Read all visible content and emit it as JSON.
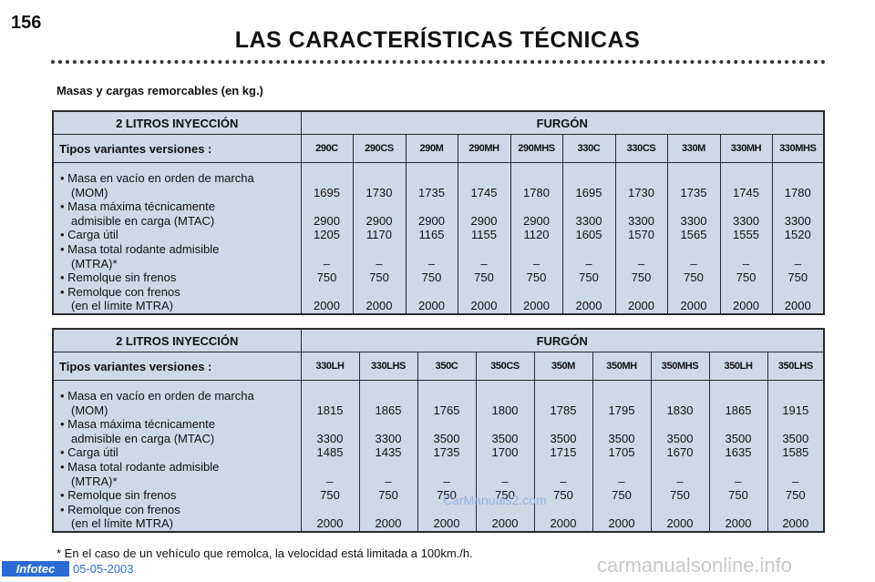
{
  "page_number": "156",
  "title": "LAS CARACTERÍSTICAS TÉCNICAS",
  "subtitle": "Masas y cargas remorcables (en kg.)",
  "row_labels": [
    "• Masa en vacío en orden de marcha",
    "(MOM)",
    "• Masa máxima técnicamente",
    "admisible en carga (MTAC)",
    "• Carga útil",
    "• Masa total rodante admisible",
    "(MTRA)*",
    "• Remolque sin frenos",
    "• Remolque con frenos",
    "(en el límite MTRA)"
  ],
  "table1": {
    "header_left": "2 LITROS INYECCIÓN",
    "header_right": "FURGÓN",
    "row_header": "Tipos variantes versiones :",
    "columns": [
      "290C",
      "290CS",
      "290M",
      "290MH",
      "290MHS",
      "330C",
      "330CS",
      "330M",
      "330MH",
      "330MHS"
    ],
    "mom": [
      "1695",
      "1730",
      "1735",
      "1745",
      "1780",
      "1695",
      "1730",
      "1735",
      "1745",
      "1780"
    ],
    "mtac": [
      "2900",
      "2900",
      "2900",
      "2900",
      "2900",
      "3300",
      "3300",
      "3300",
      "3300",
      "3300"
    ],
    "carga": [
      "1205",
      "1170",
      "1165",
      "1155",
      "1120",
      "1605",
      "1570",
      "1565",
      "1555",
      "1520"
    ],
    "mtra": [
      "–",
      "–",
      "–",
      "–",
      "–",
      "–",
      "–",
      "–",
      "–",
      "–"
    ],
    "sin_frenos": [
      "750",
      "750",
      "750",
      "750",
      "750",
      "750",
      "750",
      "750",
      "750",
      "750"
    ],
    "con_frenos": [
      "2000",
      "2000",
      "2000",
      "2000",
      "2000",
      "2000",
      "2000",
      "2000",
      "2000",
      "2000"
    ]
  },
  "table2": {
    "header_left": "2 LITROS INYECCIÓN",
    "header_right": "FURGÓN",
    "row_header": "Tipos variantes versiones :",
    "columns": [
      "330LH",
      "330LHS",
      "350C",
      "350CS",
      "350M",
      "350MH",
      "350MHS",
      "350LH",
      "350LHS"
    ],
    "mom": [
      "1815",
      "1865",
      "1765",
      "1800",
      "1785",
      "1795",
      "1830",
      "1865",
      "1915"
    ],
    "mtac": [
      "3300",
      "3300",
      "3500",
      "3500",
      "3500",
      "3500",
      "3500",
      "3500",
      "3500"
    ],
    "carga": [
      "1485",
      "1435",
      "1735",
      "1700",
      "1715",
      "1705",
      "1670",
      "1635",
      "1585"
    ],
    "mtra": [
      "–",
      "–",
      "–",
      "–",
      "–",
      "–",
      "–",
      "–",
      "–"
    ],
    "sin_frenos": [
      "750",
      "750",
      "750",
      "750",
      "750",
      "750",
      "750",
      "750",
      "750"
    ],
    "con_frenos": [
      "2000",
      "2000",
      "2000",
      "2000",
      "2000",
      "2000",
      "2000",
      "2000",
      "2000"
    ]
  },
  "footnote": "* En el caso de un vehículo que remolca, la velocidad está limitada a 100km./h.",
  "footer": {
    "logo": "Infotec",
    "date": "05-05-2003"
  },
  "watermarks": {
    "center": "CarManuals2.com",
    "corner": "carmanualsonline.info"
  }
}
